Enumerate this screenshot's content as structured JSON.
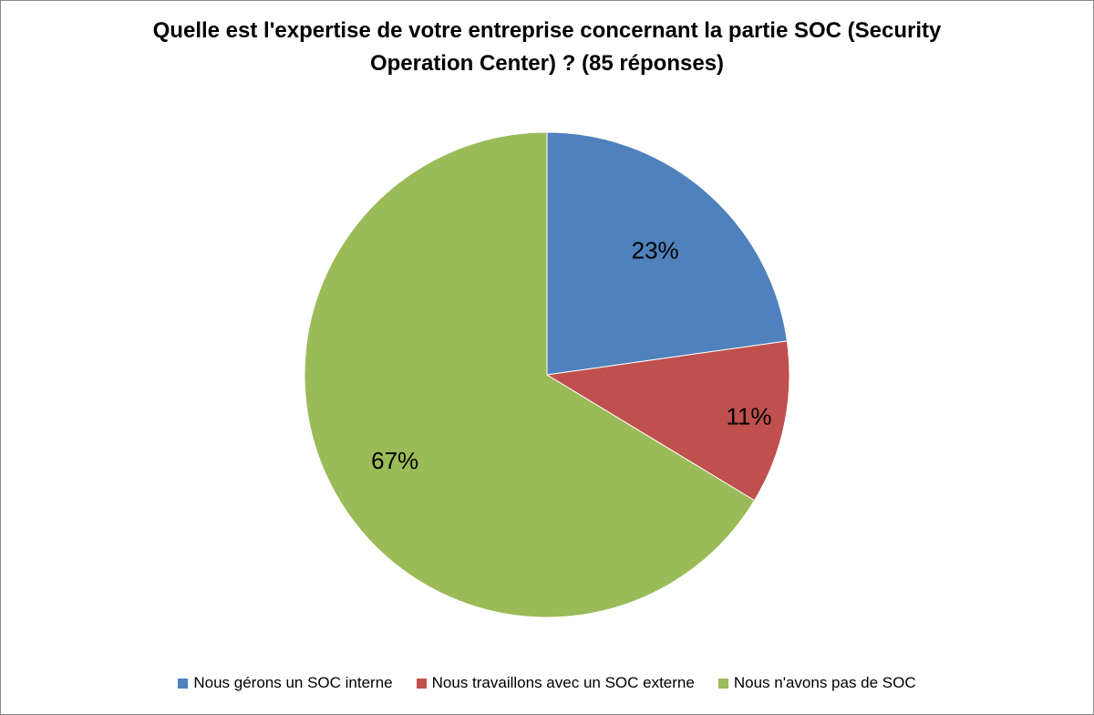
{
  "chart_data": {
    "type": "pie",
    "title_lines": [
      "Quelle est l'expertise de votre entreprise concernant la partie SOC (Security",
      "Operation Center) ? (85 réponses)"
    ],
    "categories": [
      "Nous gérons un SOC interne",
      "Nous travaillons avec un SOC externe",
      "Nous n'avons pas de SOC"
    ],
    "values": [
      23,
      11,
      67
    ],
    "labels": [
      "23%",
      "11%",
      "67%"
    ],
    "colors": [
      "#4f81bd",
      "#c0504d",
      "#9bbb59"
    ],
    "start_angle": "top, clockwise",
    "legend_position": "bottom"
  }
}
